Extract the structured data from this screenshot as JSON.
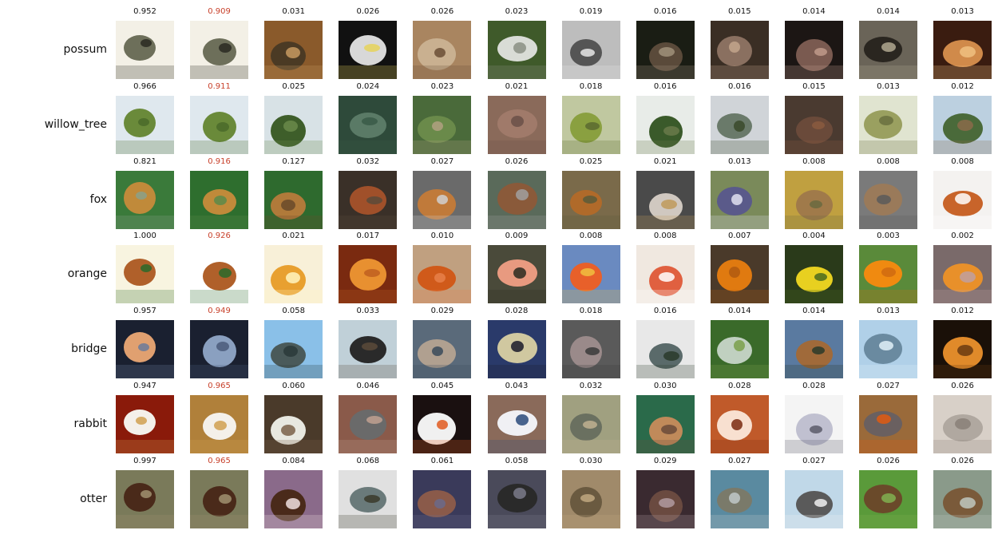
{
  "highlight_color": "#c8402a",
  "rows": [
    {
      "label": "possum",
      "scores": [
        "0.952",
        "0.909",
        "0.031",
        "0.026",
        "0.026",
        "0.023",
        "0.019",
        "0.016",
        "0.015",
        "0.014",
        "0.014",
        "0.013"
      ],
      "highlight_index": 1,
      "thumbs": [
        {
          "bg": "#f3f0e6",
          "fg": "#6d6f5a",
          "accent": "#2a2a22"
        },
        {
          "bg": "#f3f0e6",
          "fg": "#6d6f5a",
          "accent": "#2a2a22"
        },
        {
          "bg": "#8a5a2b",
          "fg": "#4b3a24",
          "accent": "#c79a60"
        },
        {
          "bg": "#111111",
          "fg": "#d8d8d8",
          "accent": "#e6d35a"
        },
        {
          "bg": "#a98560",
          "fg": "#c9b090",
          "accent": "#6b4f36"
        },
        {
          "bg": "#3f5a2a",
          "fg": "#d9dcd6",
          "accent": "#8a8f84"
        },
        {
          "bg": "#bdbdbd",
          "fg": "#555555",
          "accent": "#e8e8e8"
        },
        {
          "bg": "#1a1d14",
          "fg": "#5a4a3a",
          "accent": "#a0907a"
        },
        {
          "bg": "#3a2e24",
          "fg": "#8a7060",
          "accent": "#c2a48c"
        },
        {
          "bg": "#1c1614",
          "fg": "#7a5a50",
          "accent": "#c09a8a"
        },
        {
          "bg": "#6a6458",
          "fg": "#2a2620",
          "accent": "#b0a890"
        },
        {
          "bg": "#3a1c10",
          "fg": "#d08a4a",
          "accent": "#f0c080"
        }
      ]
    },
    {
      "label": "willow_tree",
      "scores": [
        "0.966",
        "0.911",
        "0.025",
        "0.024",
        "0.023",
        "0.021",
        "0.018",
        "0.016",
        "0.016",
        "0.015",
        "0.013",
        "0.012"
      ],
      "highlight_index": 1,
      "thumbs": [
        {
          "bg": "#dfe8ee",
          "fg": "#6a8a3a",
          "accent": "#4a6a2a"
        },
        {
          "bg": "#dfe8ee",
          "fg": "#6a8a3a",
          "accent": "#4a6a2a"
        },
        {
          "bg": "#d8e2e6",
          "fg": "#3e5e2a",
          "accent": "#6a8a4a"
        },
        {
          "bg": "#2e4a3a",
          "fg": "#5a7a66",
          "accent": "#3a5a48"
        },
        {
          "bg": "#4a6a3a",
          "fg": "#6a8a4a",
          "accent": "#b0a080"
        },
        {
          "bg": "#8a6a5a",
          "fg": "#a07a6a",
          "accent": "#6a5048"
        },
        {
          "bg": "#c0c8a0",
          "fg": "#8aa040",
          "accent": "#5a6a30"
        },
        {
          "bg": "#e8ece8",
          "fg": "#3a5a2a",
          "accent": "#6a7a4a"
        },
        {
          "bg": "#d0d4d8",
          "fg": "#6a7a6a",
          "accent": "#3a4a2a"
        },
        {
          "bg": "#4a3a30",
          "fg": "#6a4a3a",
          "accent": "#8a5a40"
        },
        {
          "bg": "#e0e4d0",
          "fg": "#9aa060",
          "accent": "#6a7040"
        },
        {
          "bg": "#bcd0e0",
          "fg": "#4a6a3a",
          "accent": "#8a6a4a"
        }
      ]
    },
    {
      "label": "fox",
      "scores": [
        "0.821",
        "0.916",
        "0.127",
        "0.032",
        "0.027",
        "0.026",
        "0.025",
        "0.021",
        "0.013",
        "0.008",
        "0.008",
        "0.008"
      ],
      "highlight_index": 1,
      "thumbs": [
        {
          "bg": "#3a7a3a",
          "fg": "#c08a3a",
          "accent": "#8aa08a"
        },
        {
          "bg": "#2e6e2e",
          "fg": "#c08a3a",
          "accent": "#5a8a4a"
        },
        {
          "bg": "#2e6a2e",
          "fg": "#b07a3a",
          "accent": "#6a4a2a"
        },
        {
          "bg": "#3a3028",
          "fg": "#a0502a",
          "accent": "#5a4a3a"
        },
        {
          "bg": "#6a6a6a",
          "fg": "#c07a3a",
          "accent": "#d0d0d0"
        },
        {
          "bg": "#5a6a5a",
          "fg": "#8a5a3a",
          "accent": "#a0a0a0"
        },
        {
          "bg": "#7a6a4a",
          "fg": "#b06a2a",
          "accent": "#5a5a3a"
        },
        {
          "bg": "#4a4a4a",
          "fg": "#d0c8c0",
          "accent": "#c09a5a"
        },
        {
          "bg": "#7a8a5a",
          "fg": "#5a5a8a",
          "accent": "#e0e0f0"
        },
        {
          "bg": "#c0a040",
          "fg": "#a07a4a",
          "accent": "#6a6a40"
        },
        {
          "bg": "#7a7a7a",
          "fg": "#9a7a5a",
          "accent": "#5a5a5a"
        },
        {
          "bg": "#f4f2f0",
          "fg": "#c8642a",
          "accent": "#ffffff"
        }
      ]
    },
    {
      "label": "orange",
      "scores": [
        "1.000",
        "0.926",
        "0.021",
        "0.017",
        "0.010",
        "0.009",
        "0.008",
        "0.008",
        "0.007",
        "0.004",
        "0.003",
        "0.002"
      ],
      "highlight_index": 1,
      "thumbs": [
        {
          "bg": "#f8f4e0",
          "fg": "#b0602a",
          "accent": "#2a6a2a"
        },
        {
          "bg": "#ffffff",
          "fg": "#b0602a",
          "accent": "#2a6a2a"
        },
        {
          "bg": "#f8f0d8",
          "fg": "#e8a030",
          "accent": "#fff4c0"
        },
        {
          "bg": "#7a2a10",
          "fg": "#e89030",
          "accent": "#c06020"
        },
        {
          "bg": "#c0a080",
          "fg": "#d05a1a",
          "accent": "#e8804a"
        },
        {
          "bg": "#4a4a3a",
          "fg": "#e89a80",
          "accent": "#2a2a20"
        },
        {
          "bg": "#6a8ac0",
          "fg": "#e8602a",
          "accent": "#f0c040"
        },
        {
          "bg": "#f0e8e0",
          "fg": "#e06040",
          "accent": "#ffffff"
        },
        {
          "bg": "#4a3a2a",
          "fg": "#e07a10",
          "accent": "#b05a10"
        },
        {
          "bg": "#2a3a1a",
          "fg": "#e8d020",
          "accent": "#4a6a20"
        },
        {
          "bg": "#5a8a3a",
          "fg": "#f08a10",
          "accent": "#d06a10"
        },
        {
          "bg": "#7a6a6a",
          "fg": "#e8902a",
          "accent": "#c0a0a0"
        }
      ]
    },
    {
      "label": "bridge",
      "scores": [
        "0.957",
        "0.949",
        "0.058",
        "0.033",
        "0.029",
        "0.028",
        "0.018",
        "0.016",
        "0.014",
        "0.014",
        "0.013",
        "0.012"
      ],
      "highlight_index": 1,
      "thumbs": [
        {
          "bg": "#1a2030",
          "fg": "#e0a070",
          "accent": "#6a7a9a"
        },
        {
          "bg": "#1a2030",
          "fg": "#8aa0c0",
          "accent": "#4a5a7a"
        },
        {
          "bg": "#8ac0e8",
          "fg": "#4a5a5a",
          "accent": "#2a3a3a"
        },
        {
          "bg": "#c0d0d8",
          "fg": "#2a2a2a",
          "accent": "#5a4a3a"
        },
        {
          "bg": "#5a6a7a",
          "fg": "#b0a090",
          "accent": "#3a4a5a"
        },
        {
          "bg": "#2a3a6a",
          "fg": "#d0c8a0",
          "accent": "#1a1a2a"
        },
        {
          "bg": "#5a5a5a",
          "fg": "#9a8a8a",
          "accent": "#3a3a3a"
        },
        {
          "bg": "#e8e8e8",
          "fg": "#5a6a6a",
          "accent": "#2a3a2a"
        },
        {
          "bg": "#3a6a2a",
          "fg": "#c0d0c0",
          "accent": "#7aa04a"
        },
        {
          "bg": "#5a7aa0",
          "fg": "#a06a3a",
          "accent": "#2a3a2a"
        },
        {
          "bg": "#b0d0e8",
          "fg": "#6a8aa0",
          "accent": "#e0f0f8"
        },
        {
          "bg": "#1a1008",
          "fg": "#e08a2a",
          "accent": "#6a3a10"
        }
      ]
    },
    {
      "label": "rabbit",
      "scores": [
        "0.947",
        "0.965",
        "0.060",
        "0.046",
        "0.045",
        "0.043",
        "0.032",
        "0.030",
        "0.028",
        "0.028",
        "0.027",
        "0.026"
      ],
      "highlight_index": 1,
      "thumbs": [
        {
          "bg": "#8a1a0a",
          "fg": "#f4f0ea",
          "accent": "#d0a050"
        },
        {
          "bg": "#b0803a",
          "fg": "#f4f0ea",
          "accent": "#d0a050"
        },
        {
          "bg": "#4a3a2a",
          "fg": "#e8e8e0",
          "accent": "#7a6048"
        },
        {
          "bg": "#8a5a4a",
          "fg": "#6a6a6a",
          "accent": "#c0a090"
        },
        {
          "bg": "#1a1010",
          "fg": "#f0f0f0",
          "accent": "#e05a20"
        },
        {
          "bg": "#8a6a5a",
          "fg": "#f0f0f4",
          "accent": "#2a4a7a"
        },
        {
          "bg": "#a0a080",
          "fg": "#6a7060",
          "accent": "#c0b090"
        },
        {
          "bg": "#2a6a4a",
          "fg": "#c08a5a",
          "accent": "#6a4a3a"
        },
        {
          "bg": "#c05a2a",
          "fg": "#f8e0d0",
          "accent": "#7a2a10"
        },
        {
          "bg": "#f4f4f4",
          "fg": "#c0c0d0",
          "accent": "#5a5a6a"
        },
        {
          "bg": "#9a6a3a",
          "fg": "#6a6060",
          "accent": "#e05a10"
        },
        {
          "bg": "#d8d0c8",
          "fg": "#b0a8a0",
          "accent": "#8a8078"
        }
      ]
    },
    {
      "label": "otter",
      "scores": [
        "0.997",
        "0.965",
        "0.084",
        "0.068",
        "0.061",
        "0.058",
        "0.030",
        "0.029",
        "0.027",
        "0.027",
        "0.026",
        "0.026"
      ],
      "highlight_index": 1,
      "thumbs": [
        {
          "bg": "#7a7a5a",
          "fg": "#4a2a1a",
          "accent": "#a09070"
        },
        {
          "bg": "#7a7a5a",
          "fg": "#4a2a1a",
          "accent": "#a09070"
        },
        {
          "bg": "#8a6a8a",
          "fg": "#4a2a1a",
          "accent": "#f0e0e0"
        },
        {
          "bg": "#e0e0e0",
          "fg": "#6a7a7a",
          "accent": "#3a3a2a"
        },
        {
          "bg": "#3a3a5a",
          "fg": "#8a5a4a",
          "accent": "#6a6a8a"
        },
        {
          "bg": "#4a4a5a",
          "fg": "#2a2a2a",
          "accent": "#7a7a8a"
        },
        {
          "bg": "#a08a6a",
          "fg": "#6a5a40",
          "accent": "#c0a880"
        },
        {
          "bg": "#3a2a30",
          "fg": "#6a4a40",
          "accent": "#b09aa0"
        },
        {
          "bg": "#5a8aa0",
          "fg": "#7a7a6a",
          "accent": "#c0c8c8"
        },
        {
          "bg": "#c0d8e8",
          "fg": "#5a5a5a",
          "accent": "#f0f0f0"
        },
        {
          "bg": "#5a9a3a",
          "fg": "#6a4a2a",
          "accent": "#80b050"
        },
        {
          "bg": "#8a9a8a",
          "fg": "#7a5a3a",
          "accent": "#c0c8c0"
        }
      ]
    }
  ]
}
